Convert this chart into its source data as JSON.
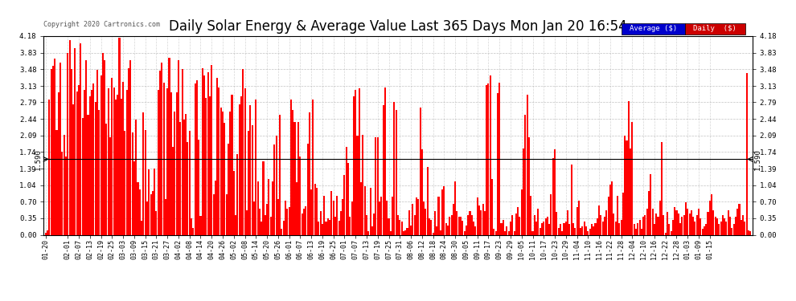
{
  "title": "Daily Solar Energy & Average Value Last 365 Days Mon Jan 20 16:54",
  "copyright": "Copyright 2020 Cartronics.com",
  "avg_line_value": 1.59,
  "avg_line_label": "1.590",
  "bar_color": "#FF0000",
  "avg_line_color": "#000000",
  "background_color": "#FFFFFF",
  "plot_bg_color": "#FFFFFF",
  "grid_color": "#999999",
  "ylim": [
    0.0,
    4.18
  ],
  "yticks": [
    0.0,
    0.35,
    0.7,
    1.04,
    1.39,
    1.74,
    2.09,
    2.44,
    2.79,
    3.13,
    3.48,
    3.83,
    4.18
  ],
  "legend_avg_color": "#0000CC",
  "legend_daily_color": "#CC0000",
  "title_fontsize": 12,
  "tick_label_fontsize": 6,
  "x_labels": [
    "01-20",
    "02-01",
    "02-07",
    "02-13",
    "02-19",
    "02-25",
    "03-03",
    "03-09",
    "03-15",
    "03-21",
    "03-27",
    "04-02",
    "04-08",
    "04-14",
    "04-20",
    "04-26",
    "05-02",
    "05-08",
    "05-14",
    "05-20",
    "05-26",
    "06-01",
    "06-07",
    "06-13",
    "06-19",
    "06-25",
    "07-01",
    "07-07",
    "07-13",
    "07-19",
    "07-25",
    "07-31",
    "08-06",
    "08-12",
    "08-18",
    "08-24",
    "08-30",
    "09-05",
    "09-11",
    "09-17",
    "09-23",
    "09-29",
    "10-05",
    "10-11",
    "10-17",
    "10-23",
    "10-29",
    "11-04",
    "11-10",
    "11-16",
    "11-22",
    "11-28",
    "12-04",
    "12-10",
    "12-16",
    "12-22",
    "12-28",
    "01-03",
    "01-09",
    "01-15"
  ],
  "x_label_indices": [
    0,
    12,
    18,
    24,
    30,
    36,
    42,
    48,
    54,
    60,
    66,
    72,
    78,
    84,
    90,
    96,
    102,
    108,
    114,
    120,
    126,
    132,
    138,
    144,
    150,
    156,
    162,
    168,
    174,
    180,
    186,
    192,
    198,
    204,
    210,
    216,
    222,
    228,
    234,
    240,
    246,
    252,
    258,
    264,
    270,
    276,
    282,
    288,
    294,
    300,
    306,
    312,
    318,
    324,
    330,
    336,
    342,
    348,
    354,
    360
  ],
  "values": [
    0.05,
    0.1,
    2.85,
    3.48,
    3.55,
    3.7,
    2.2,
    3.0,
    3.62,
    1.75,
    2.1,
    1.65,
    3.82,
    4.1,
    3.48,
    2.75,
    3.92,
    3.02,
    3.15,
    4.02,
    2.45,
    3.05,
    3.68,
    2.52,
    2.91,
    3.05,
    3.18,
    2.8,
    3.47,
    2.62,
    3.35,
    3.82,
    3.67,
    2.34,
    3.08,
    2.05,
    3.3,
    3.1,
    2.85,
    2.94,
    4.15,
    2.87,
    3.22,
    2.18,
    3.04,
    3.5,
    3.68,
    2.15,
    1.55,
    2.43,
    1.1,
    0.95,
    0.3,
    2.58,
    2.21,
    0.7,
    1.38,
    0.85,
    0.92,
    1.4,
    0.5,
    3.04,
    3.45,
    3.62,
    3.2,
    0.75,
    3.08,
    3.73,
    3.0,
    1.85,
    2.6,
    3.0,
    3.68,
    2.38,
    3.48,
    2.42,
    2.55,
    1.95,
    2.18,
    0.35,
    0.15,
    3.18,
    3.25,
    2.0,
    0.4,
    3.5,
    3.35,
    2.88,
    3.42,
    2.91,
    3.58,
    0.85,
    1.14,
    3.3,
    3.1,
    2.68,
    2.6,
    2.35,
    0.85,
    1.92,
    2.6,
    2.95,
    1.35,
    0.42,
    1.7,
    2.74,
    2.91,
    3.48,
    3.08,
    0.52,
    2.18,
    2.72,
    2.3,
    0.7,
    2.85,
    1.12,
    0.55,
    0.28,
    1.55,
    0.42,
    0.65,
    1.18,
    0.38,
    1.12,
    1.9,
    2.08,
    0.75,
    2.52,
    0.12,
    0.3,
    0.72,
    0.55,
    0.58,
    2.85,
    2.62,
    2.38,
    1.1,
    2.38,
    1.65,
    0.45,
    0.55,
    0.6,
    1.92,
    2.58,
    0.95,
    2.84,
    1.08,
    0.98,
    0.28,
    0.5,
    0.22,
    0.82,
    0.28,
    0.35,
    0.32,
    0.92,
    0.72,
    0.38,
    0.82,
    0.3,
    0.5,
    0.75,
    1.25,
    1.85,
    1.52,
    0.38,
    0.7,
    2.92,
    3.05,
    2.08,
    3.08,
    1.1,
    2.1,
    1.02,
    0.42,
    0.08,
    0.98,
    0.18,
    0.45,
    2.05,
    2.05,
    0.7,
    0.8,
    2.72,
    3.1,
    0.72,
    0.35,
    0.08,
    0.8,
    2.8,
    2.62,
    0.42,
    0.32,
    0.28,
    0.08,
    0.1,
    0.15,
    0.52,
    0.2,
    0.65,
    0.42,
    0.78,
    0.75,
    2.68,
    1.8,
    0.7,
    0.55,
    1.42,
    0.35,
    0.32,
    0.05,
    0.5,
    0.18,
    0.8,
    0.1,
    0.95,
    1.02,
    0.25,
    0.2,
    0.38,
    0.42,
    0.65,
    1.12,
    0.5,
    0.38,
    0.38,
    0.3,
    0.08,
    0.2,
    0.42,
    0.5,
    0.42,
    0.28,
    0.18,
    0.78,
    0.62,
    0.52,
    0.65,
    0.5,
    3.15,
    3.18,
    3.35,
    1.18,
    0.12,
    0.08,
    2.98,
    3.2,
    0.25,
    0.32,
    0.08,
    0.18,
    0.08,
    0.28,
    0.42,
    0.08,
    0.45,
    0.58,
    0.38,
    0.95,
    1.82,
    2.52,
    2.95,
    2.05,
    0.82,
    0.08,
    0.42,
    0.28,
    0.55,
    0.15,
    0.25,
    0.28,
    0.35,
    0.38,
    0.22,
    0.85,
    1.62,
    1.8,
    0.48,
    0.15,
    0.22,
    0.08,
    0.25,
    0.28,
    0.52,
    0.22,
    1.48,
    0.25,
    0.15,
    0.58,
    0.72,
    0.15,
    0.18,
    0.28,
    0.18,
    0.08,
    0.12,
    0.22,
    0.18,
    0.25,
    0.35,
    0.62,
    0.42,
    0.28,
    0.38,
    0.52,
    0.8,
    1.05,
    1.12,
    0.45,
    0.28,
    0.82,
    0.25,
    0.32,
    0.88,
    2.08,
    1.98,
    2.82,
    1.82,
    2.38,
    0.22,
    0.12,
    0.25,
    0.32,
    0.12,
    0.38,
    0.42,
    0.55,
    0.92,
    1.28,
    0.55,
    0.22,
    0.45,
    0.38,
    0.72,
    1.95,
    0.42,
    0.05,
    0.48,
    0.22,
    0.08,
    0.32,
    0.58,
    0.52,
    0.45,
    0.25,
    0.38,
    0.42,
    0.68,
    0.55,
    0.45,
    0.52,
    0.38,
    0.28,
    0.42,
    0.55,
    0.35,
    0.12,
    0.18,
    0.22,
    0.48,
    0.72,
    0.85,
    0.52,
    0.38,
    0.35,
    0.22,
    0.28,
    0.42,
    0.35,
    0.28,
    0.52,
    0.38,
    0.15,
    0.22,
    0.38,
    0.55,
    0.65,
    0.32,
    0.42,
    0.28,
    3.4,
    0.1,
    0.08
  ]
}
